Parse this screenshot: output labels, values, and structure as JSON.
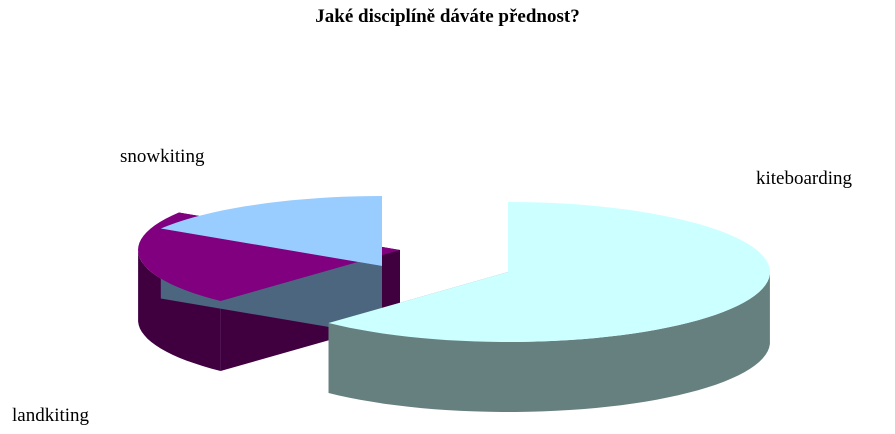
{
  "chart_data": {
    "type": "pie",
    "title": "Jaké disciplíně dáváte přednost?",
    "categories": [
      "kiteboarding",
      "snowkiting",
      "landkiting"
    ],
    "values": [
      62,
      22,
      16
    ],
    "exploded": [
      true,
      true,
      true
    ],
    "legend": "none",
    "colors": {
      "kiteboarding": {
        "top": "#CCFFFF",
        "side": "#66807F"
      },
      "snowkiting": {
        "top": "#800080",
        "side": "#400040"
      },
      "landkiting": {
        "top": "#99CCFF",
        "side": "#4C6680"
      }
    }
  }
}
